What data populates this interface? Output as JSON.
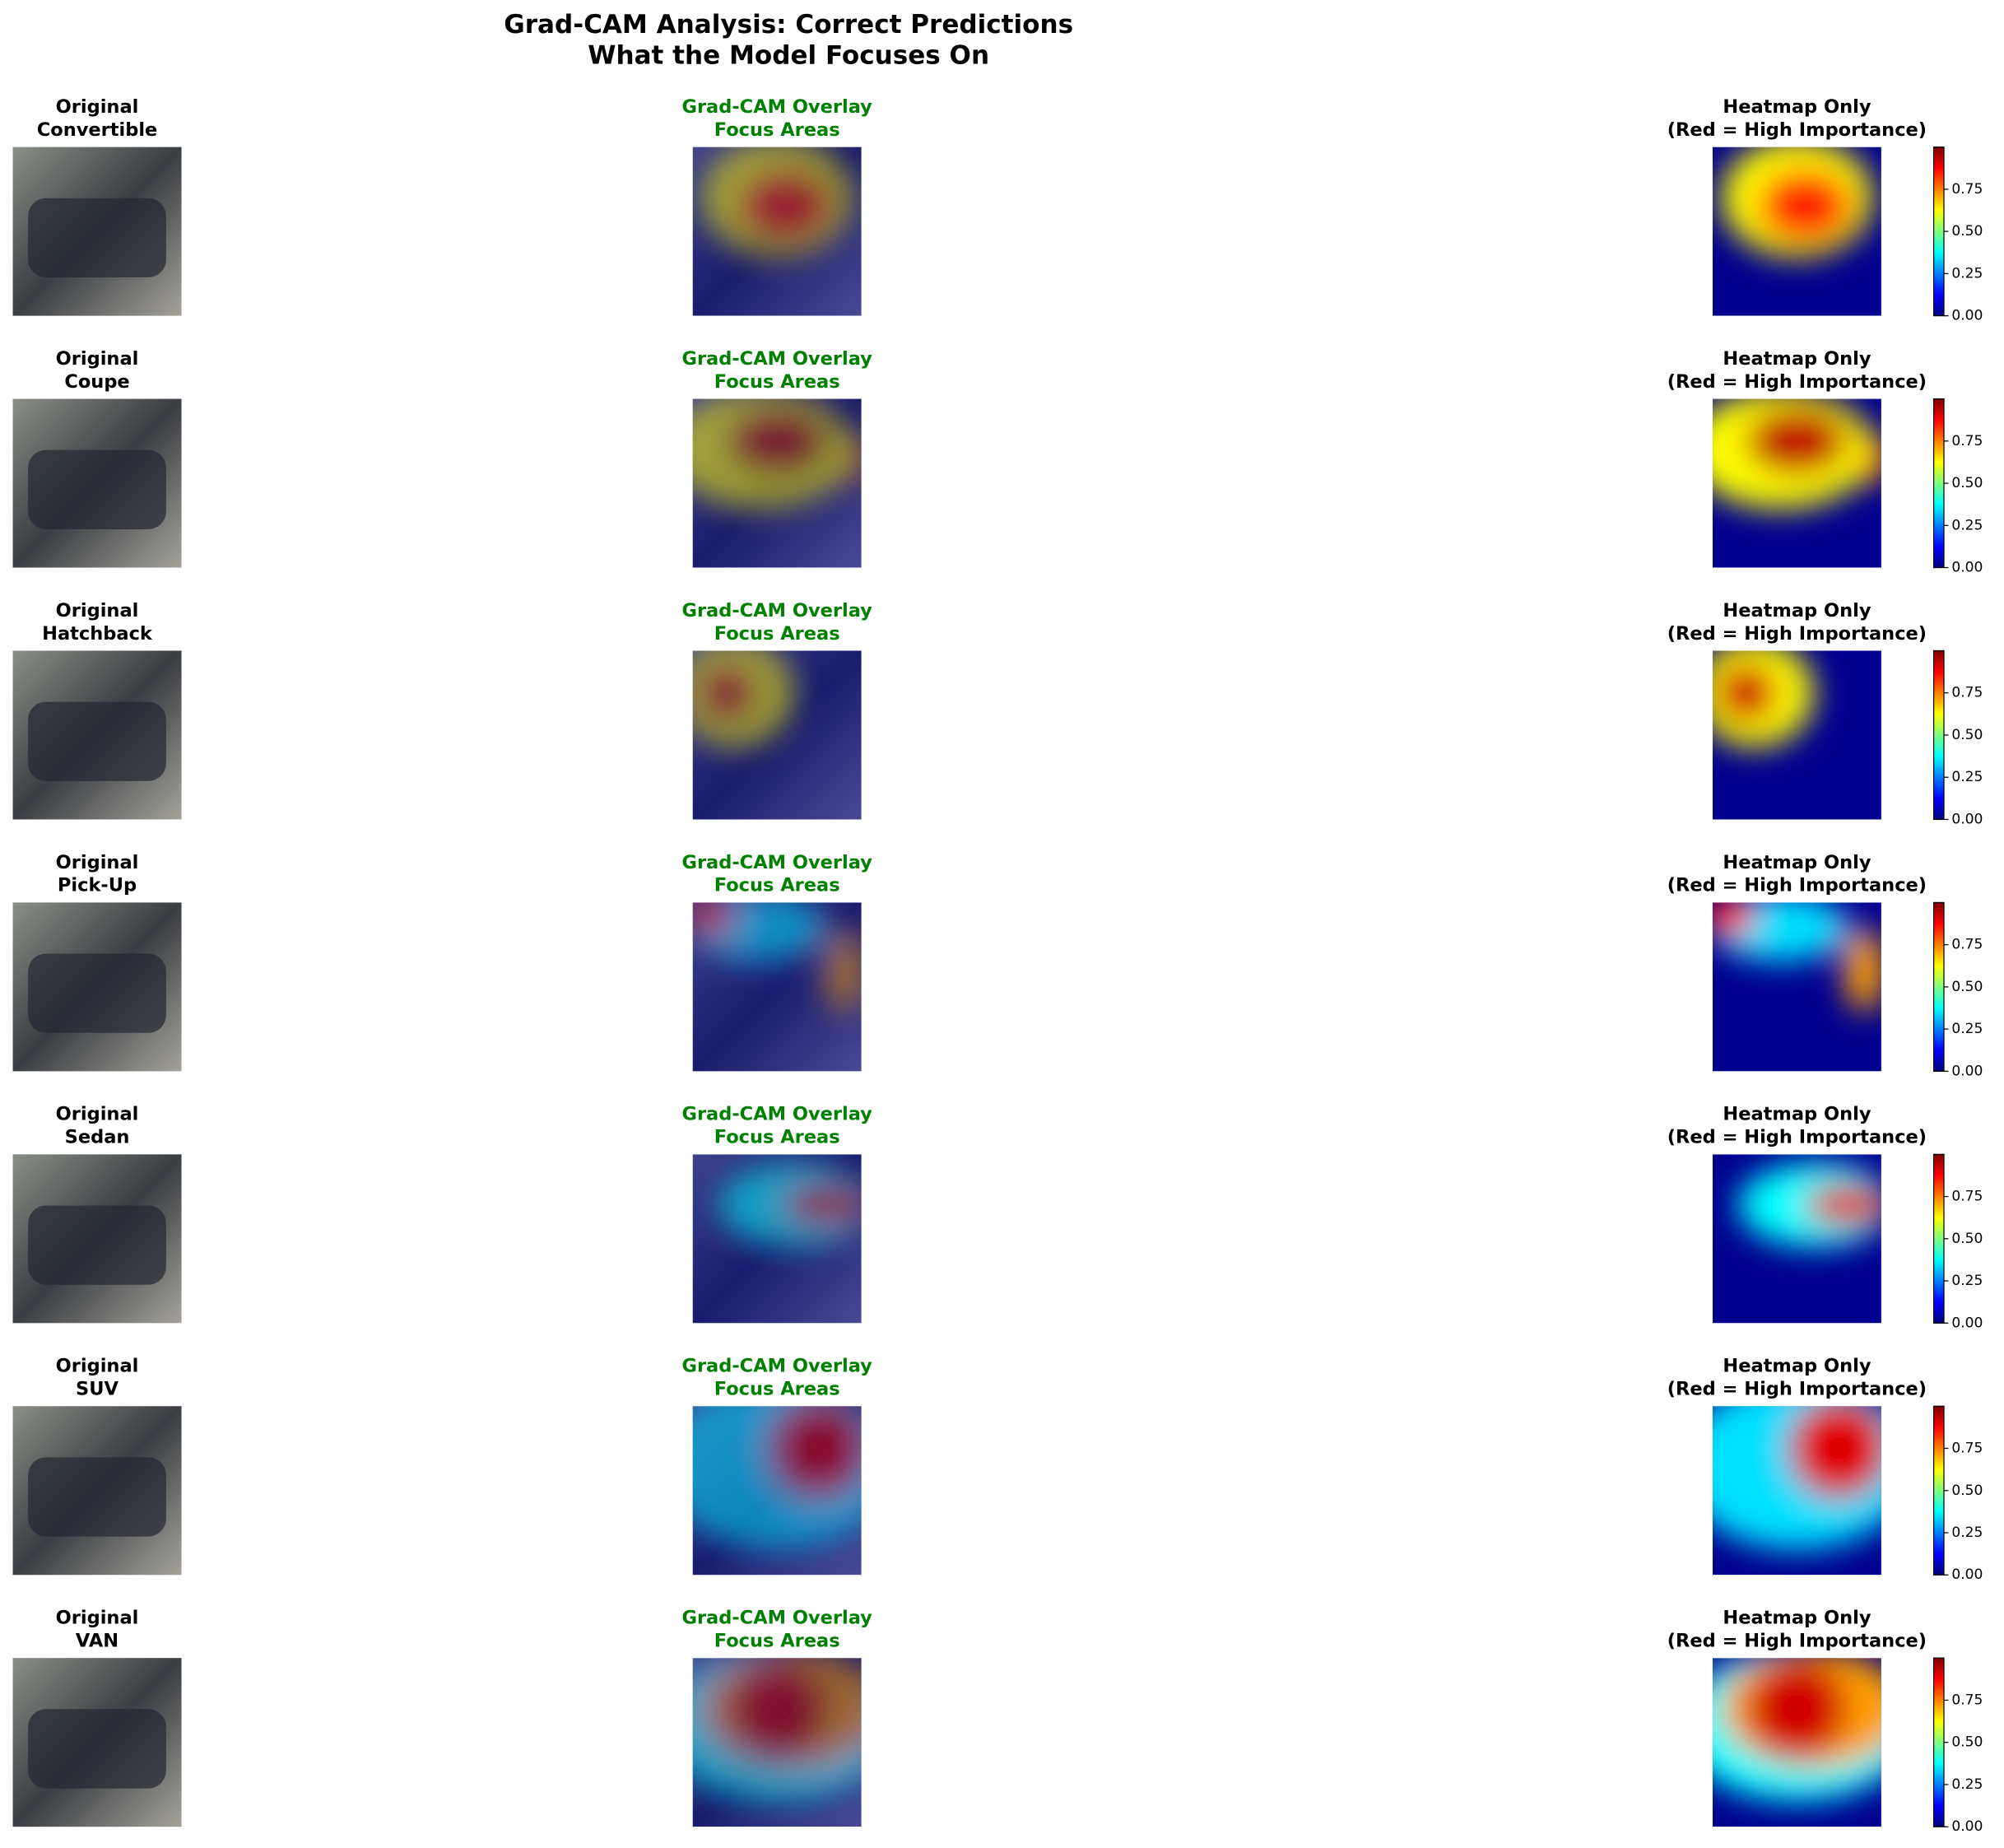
{
  "title": [
    "Grad-CAM Analysis: Correct Predictions",
    "What the Model Focuses On"
  ],
  "rows": [
    {
      "original": "Original",
      "class": "Convertible",
      "overlay": [
        "Grad-CAM Overlay",
        "Focus Areas"
      ],
      "heatmap": [
        "Heatmap Only",
        "(Red = High Importance)"
      ]
    },
    {
      "original": "Original",
      "class": "Coupe",
      "overlay": [
        "Grad-CAM Overlay",
        "Focus Areas"
      ],
      "heatmap": [
        "Heatmap Only",
        "(Red = High Importance)"
      ]
    },
    {
      "original": "Original",
      "class": "Hatchback",
      "overlay": [
        "Grad-CAM Overlay",
        "Focus Areas"
      ],
      "heatmap": [
        "Heatmap Only",
        "(Red = High Importance)"
      ]
    },
    {
      "original": "Original",
      "class": "Pick-Up",
      "overlay": [
        "Grad-CAM Overlay",
        "Focus Areas"
      ],
      "heatmap": [
        "Heatmap Only",
        "(Red = High Importance)"
      ]
    },
    {
      "original": "Original",
      "class": "Sedan",
      "overlay": [
        "Grad-CAM Overlay",
        "Focus Areas"
      ],
      "heatmap": [
        "Heatmap Only",
        "(Red = High Importance)"
      ]
    },
    {
      "original": "Original",
      "class": "SUV",
      "overlay": [
        "Grad-CAM Overlay",
        "Focus Areas"
      ],
      "heatmap": [
        "Heatmap Only",
        "(Red = High Importance)"
      ]
    },
    {
      "original": "Original",
      "class": "VAN",
      "overlay": [
        "Grad-CAM Overlay",
        "Focus Areas"
      ],
      "heatmap": [
        "Heatmap Only",
        "(Red = High Importance)"
      ]
    }
  ],
  "colorbar": {
    "lim": [
      0,
      1
    ],
    "ticks": [
      {
        "value": 0,
        "label": "0.00"
      },
      {
        "value": 0.25,
        "label": "0.25"
      },
      {
        "value": 0.5,
        "label": "0.50"
      },
      {
        "value": 0.75,
        "label": "0.75"
      }
    ]
  }
}
